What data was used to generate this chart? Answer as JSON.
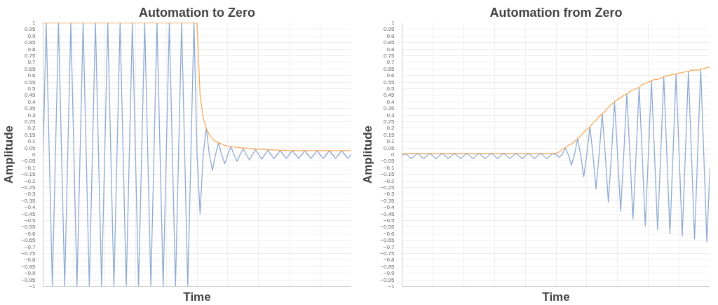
{
  "chart_data": [
    {
      "type": "line",
      "title": "Automation to Zero",
      "xlabel": "Time",
      "ylabel": "Amplitude",
      "categories": [
        null,
        null,
        null,
        null,
        null,
        null,
        null,
        null,
        null,
        null,
        null,
        null,
        null,
        null,
        null,
        null,
        null,
        null,
        null,
        null,
        null,
        null,
        null,
        null,
        null,
        null,
        null,
        null,
        null,
        null,
        null,
        null,
        null,
        null,
        null,
        null,
        null,
        null,
        null,
        null,
        null,
        null,
        null,
        null,
        null,
        null,
        null,
        null,
        null,
        null,
        null,
        null,
        null,
        null,
        null,
        null,
        null,
        null,
        null,
        null,
        null,
        null,
        null,
        null,
        null,
        null,
        null,
        null,
        null,
        null,
        null,
        null,
        null,
        null,
        null,
        null,
        null,
        null,
        null,
        null,
        null,
        null,
        null,
        null,
        null,
        null,
        null,
        null,
        null,
        null,
        null,
        null,
        null,
        null,
        null,
        null,
        null,
        null,
        null,
        null,
        null
      ],
      "series": [
        {
          "color": "#8eaad2",
          "values": [
            0,
            1,
            0,
            -1,
            0,
            1,
            0,
            -1,
            0,
            1,
            0,
            -1,
            0,
            1,
            0,
            -1,
            0,
            1,
            0,
            -1,
            0,
            1,
            0,
            -1,
            0,
            1,
            0,
            -1,
            0,
            1,
            0,
            -1,
            0,
            1,
            0,
            -1,
            0,
            1,
            0,
            -1,
            0,
            1,
            0,
            -1,
            0,
            1,
            0,
            -1,
            0,
            1,
            0,
            -0.45,
            0,
            0.2,
            0,
            -0.12,
            0,
            0.09,
            0,
            -0.07,
            0,
            0.06,
            0,
            -0.05,
            0,
            0.045,
            0,
            -0.04,
            0,
            0.037,
            0,
            -0.035,
            0,
            0.033,
            0,
            -0.031,
            0,
            0.03,
            0,
            -0.03,
            0,
            0.03,
            0,
            -0.03,
            0,
            0.03,
            0,
            -0.03,
            0,
            0.03,
            0,
            -0.03,
            0,
            0.03,
            0,
            -0.03,
            0,
            0.03,
            0,
            -0.03,
            0
          ]
        },
        {
          "color": "#f7a95c",
          "values": [
            1,
            1,
            1,
            1,
            1,
            1,
            1,
            1,
            1,
            1,
            1,
            1,
            1,
            1,
            1,
            1,
            1,
            1,
            1,
            1,
            1,
            1,
            1,
            1,
            1,
            1,
            1,
            1,
            1,
            1,
            1,
            1,
            1,
            1,
            1,
            1,
            1,
            1,
            1,
            1,
            1,
            1,
            1,
            1,
            1,
            1,
            1,
            1,
            1,
            1,
            1,
            0.45,
            0.28,
            0.2,
            0.15,
            0.12,
            0.1,
            0.09,
            0.08,
            0.07,
            0.065,
            0.06,
            0.058,
            0.055,
            0.052,
            0.05,
            0.048,
            0.046,
            0.044,
            0.042,
            0.04,
            0.039,
            0.038,
            0.037,
            0.036,
            0.035,
            0.034,
            0.033,
            0.032,
            0.031,
            0.03,
            0.03,
            0.03,
            0.03,
            0.03,
            0.03,
            0.03,
            0.03,
            0.03,
            0.03,
            0.03,
            0.03,
            0.03,
            0.03,
            0.03,
            0.03,
            0.03,
            0.03,
            0.03,
            0.03,
            0.03
          ]
        }
      ],
      "ylim": [
        -1,
        1
      ],
      "yticks": [
        -1,
        -0.95,
        -0.9,
        -0.85,
        -0.8,
        -0.75,
        -0.7,
        -0.65,
        -0.6,
        -0.55,
        -0.5,
        -0.45,
        -0.4,
        -0.35,
        -0.3,
        -0.25,
        -0.2,
        -0.15,
        -0.1,
        -0.05,
        0,
        0.05,
        0.1,
        0.15,
        0.2,
        0.25,
        0.3,
        0.35,
        0.4,
        0.45,
        0.5,
        0.55,
        0.6,
        0.65,
        0.7,
        0.75,
        0.8,
        0.85,
        0.9,
        0.95,
        1
      ],
      "grid": true,
      "line_style": "solid"
    },
    {
      "type": "line",
      "title": "Automation from Zero",
      "xlabel": "Time",
      "ylabel": "Amplitude",
      "categories": [
        null,
        null,
        null,
        null,
        null,
        null,
        null,
        null,
        null,
        null,
        null,
        null,
        null,
        null,
        null,
        null,
        null,
        null,
        null,
        null,
        null,
        null,
        null,
        null,
        null,
        null,
        null,
        null,
        null,
        null,
        null,
        null,
        null,
        null,
        null,
        null,
        null,
        null,
        null,
        null,
        null,
        null,
        null,
        null,
        null,
        null,
        null,
        null,
        null,
        null,
        null,
        null,
        null,
        null,
        null,
        null,
        null,
        null,
        null,
        null,
        null,
        null,
        null,
        null,
        null,
        null,
        null,
        null,
        null,
        null,
        null,
        null,
        null,
        null,
        null,
        null,
        null,
        null,
        null,
        null,
        null,
        null,
        null,
        null,
        null,
        null,
        null,
        null,
        null,
        null,
        null,
        null,
        null,
        null,
        null,
        null,
        null,
        null,
        null,
        null,
        null
      ],
      "series": [
        {
          "color": "#8eaad2",
          "values": [
            -0.01,
            0.01,
            -0.01,
            -0.03,
            -0.01,
            0.01,
            -0.01,
            -0.03,
            -0.01,
            0.01,
            -0.01,
            -0.03,
            -0.01,
            0.01,
            -0.01,
            -0.03,
            -0.01,
            0.01,
            -0.01,
            -0.03,
            -0.01,
            0.01,
            -0.01,
            -0.03,
            -0.01,
            0.01,
            -0.01,
            -0.03,
            -0.01,
            0.01,
            -0.01,
            -0.03,
            -0.01,
            0.01,
            -0.01,
            -0.03,
            -0.01,
            0.01,
            -0.01,
            -0.03,
            -0.01,
            0.01,
            -0.01,
            -0.03,
            -0.01,
            0.01,
            -0.01,
            -0.03,
            -0.01,
            0.01,
            0,
            -0.02,
            0,
            0.05,
            0,
            -0.08,
            0,
            0.12,
            0,
            -0.17,
            0,
            0.21,
            0,
            -0.26,
            0,
            0.31,
            0,
            -0.36,
            0,
            0.4,
            0,
            -0.43,
            0,
            0.46,
            0,
            -0.49,
            0,
            0.51,
            0,
            -0.54,
            0,
            0.56,
            0,
            -0.57,
            0,
            0.59,
            0,
            -0.6,
            0,
            0.61,
            0,
            -0.62,
            0,
            0.63,
            0,
            -0.64,
            0,
            0.65,
            0,
            -0.66,
            -0.1
          ]
        },
        {
          "color": "#f7a95c",
          "values": [
            0.01,
            0.01,
            0.01,
            0.01,
            0.01,
            0.01,
            0.01,
            0.01,
            0.01,
            0.01,
            0.01,
            0.01,
            0.01,
            0.01,
            0.01,
            0.01,
            0.01,
            0.01,
            0.01,
            0.01,
            0.01,
            0.01,
            0.01,
            0.01,
            0.01,
            0.01,
            0.01,
            0.01,
            0.01,
            0.01,
            0.01,
            0.01,
            0.01,
            0.01,
            0.01,
            0.01,
            0.01,
            0.01,
            0.01,
            0.01,
            0.01,
            0.01,
            0.01,
            0.01,
            0.01,
            0.01,
            0.01,
            0.01,
            0.01,
            0.01,
            0.01,
            0.02,
            0.04,
            0.05,
            0.07,
            0.08,
            0.1,
            0.12,
            0.14,
            0.17,
            0.19,
            0.21,
            0.24,
            0.26,
            0.29,
            0.31,
            0.33,
            0.36,
            0.38,
            0.4,
            0.42,
            0.43,
            0.45,
            0.46,
            0.48,
            0.49,
            0.5,
            0.51,
            0.53,
            0.54,
            0.55,
            0.56,
            0.57,
            0.57,
            0.58,
            0.59,
            0.6,
            0.6,
            0.61,
            0.61,
            0.62,
            0.62,
            0.63,
            0.63,
            0.64,
            0.64,
            0.64,
            0.65,
            0.65,
            0.66,
            0.66
          ]
        }
      ],
      "ylim": [
        -1,
        1
      ],
      "yticks": [
        -1,
        -0.95,
        -0.9,
        -0.85,
        -0.8,
        -0.75,
        -0.7,
        -0.65,
        -0.6,
        -0.55,
        -0.5,
        -0.45,
        -0.4,
        -0.35,
        -0.3,
        -0.25,
        -0.2,
        -0.15,
        -0.1,
        -0.05,
        0,
        0.05,
        0.1,
        0.15,
        0.2,
        0.25,
        0.3,
        0.35,
        0.4,
        0.45,
        0.5,
        0.55,
        0.6,
        0.65,
        0.7,
        0.75,
        0.8,
        0.85,
        0.9,
        0.95,
        1
      ],
      "grid": true,
      "line_style": "solid"
    }
  ]
}
